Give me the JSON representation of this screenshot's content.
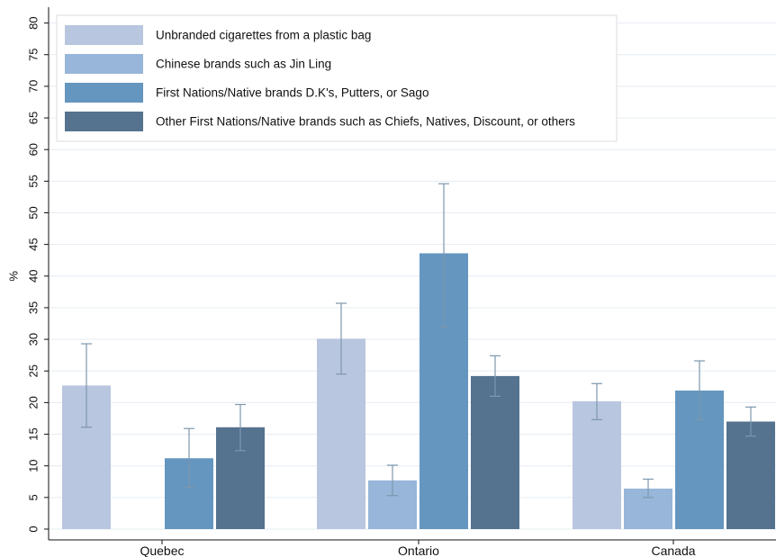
{
  "chart_data": {
    "type": "bar",
    "ylabel": "%",
    "ylim": [
      0,
      82
    ],
    "yticks": [
      0,
      5,
      10,
      15,
      20,
      25,
      30,
      35,
      40,
      45,
      50,
      55,
      60,
      65,
      70,
      75,
      80
    ],
    "grid": true,
    "legend_position": "top-left",
    "categories": [
      "Quebec",
      "Ontario",
      "Canada"
    ],
    "series": [
      {
        "name": "Unbranded cigarettes from a plastic bag",
        "color": "#b9c6df",
        "values": [
          22.7,
          30.1,
          20.2
        ],
        "ci_low": [
          16.1,
          24.5,
          17.3
        ],
        "ci_high": [
          29.3,
          35.7,
          23.0
        ]
      },
      {
        "name": "Chinese brands such as Jin Ling",
        "color": "#97b6d9",
        "values": [
          null,
          7.7,
          6.4
        ],
        "ci_low": [
          null,
          5.3,
          5.0
        ],
        "ci_high": [
          null,
          10.1,
          7.9
        ]
      },
      {
        "name": "First Nations/Native brands D.K's, Putters, or Sago",
        "color": "#6496bf",
        "values": [
          11.2,
          43.6,
          21.9
        ],
        "ci_low": [
          6.6,
          32.0,
          17.3
        ],
        "ci_high": [
          15.9,
          54.6,
          26.6
        ]
      },
      {
        "name": "Other First Nations/Native brands such as Chiefs, Natives, Discount, or others",
        "color": "#55728f",
        "values": [
          16.1,
          24.2,
          17.0
        ],
        "ci_low": [
          12.4,
          21.0,
          14.7
        ],
        "ci_high": [
          19.7,
          27.4,
          19.3
        ]
      }
    ]
  }
}
